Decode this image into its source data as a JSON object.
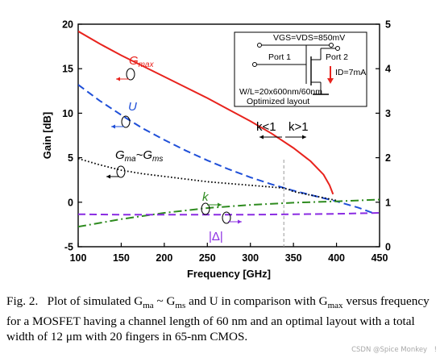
{
  "chart_data": {
    "type": "line",
    "xlabel": "Frequency [GHz]",
    "ylabel": "Gain [dB]",
    "xlim": [
      100,
      450
    ],
    "ylim": [
      -5,
      20
    ],
    "y2lim": [
      0,
      5
    ],
    "xticks": [
      100,
      150,
      200,
      250,
      300,
      350,
      400,
      450
    ],
    "yticks": [
      -5,
      0,
      5,
      10,
      15,
      20
    ],
    "y2ticks": [
      0,
      1,
      2,
      3,
      4,
      5
    ],
    "grid": false,
    "series": [
      {
        "name": "Gmax",
        "axis": "left",
        "color": "#e8231d",
        "dash": "solid",
        "x": [
          100,
          125,
          150,
          175,
          200,
          225,
          250,
          275,
          300,
          325,
          350,
          370,
          385,
          392,
          396
        ],
        "y": [
          19.2,
          17.8,
          16.5,
          15.3,
          14.1,
          12.9,
          11.7,
          10.4,
          9.1,
          7.7,
          6.1,
          4.6,
          3.1,
          1.9,
          0.9
        ]
      },
      {
        "name": "U",
        "axis": "left",
        "color": "#1f4fd8",
        "dash": "dash",
        "x": [
          100,
          125,
          150,
          175,
          200,
          225,
          250,
          275,
          300,
          325,
          350,
          375,
          400,
          425,
          445
        ],
        "y": [
          13.2,
          11.4,
          9.8,
          8.3,
          7.0,
          5.8,
          4.7,
          3.7,
          2.8,
          2.0,
          1.3,
          0.7,
          0.1,
          -0.6,
          -1.3
        ]
      },
      {
        "name": "Gma~Gms",
        "axis": "left",
        "color": "#000000",
        "dash": "dot",
        "x": [
          100,
          125,
          150,
          175,
          200,
          225,
          250,
          275,
          300,
          325,
          338,
          345,
          350,
          375,
          400
        ],
        "y": [
          4.9,
          4.2,
          3.6,
          3.2,
          2.9,
          2.6,
          2.3,
          2.1,
          1.9,
          1.7,
          1.6,
          1.4,
          1.2,
          0.7,
          0.2
        ]
      },
      {
        "name": "k",
        "axis": "right",
        "color": "#2e8b1f",
        "dash": "dashdot",
        "x": [
          100,
          150,
          200,
          250,
          300,
          350,
          400,
          450
        ],
        "y": [
          0.45,
          0.62,
          0.76,
          0.87,
          0.94,
          0.99,
          1.02,
          1.06
        ]
      },
      {
        "name": "|Δ|",
        "axis": "right",
        "color": "#8a2be2",
        "dash": "dash",
        "x": [
          100,
          150,
          200,
          250,
          300,
          350,
          400,
          450
        ],
        "y": [
          0.73,
          0.72,
          0.72,
          0.72,
          0.72,
          0.73,
          0.74,
          0.76
        ]
      }
    ],
    "annotations": {
      "gmax": "G",
      "gmax_sub": "max",
      "u": "U",
      "gma": "G",
      "gma_sub": "ma",
      "gma_tilde": "~G",
      "gms_sub": "ms",
      "k": "k",
      "delta": "|Δ|",
      "k_lt": "k<1",
      "k_gt": "k>1",
      "k_boundary_x": 340
    },
    "inset": {
      "bias": "VGS=VDS=850mV",
      "port1": "Port 1",
      "port2": "Port 2",
      "id": "ID=7mA",
      "wl": "W/L=20x600nm/60nm",
      "layout": "Optimized layout"
    }
  },
  "caption": {
    "fig": "Fig. 2.",
    "p1": "Plot of simulated G",
    "s1": "ma",
    "p2": " ~ G",
    "s2": "ms",
    "p3": " and U in comparison with G",
    "s3": "max",
    "p4": " versus frequency for a MOSFET having a channel length of 60 nm and an optimal layout with a total width of 12 μm with 20 fingers in 65-nm CMOS."
  },
  "watermark": "CSDN @Spice Monkey　!"
}
